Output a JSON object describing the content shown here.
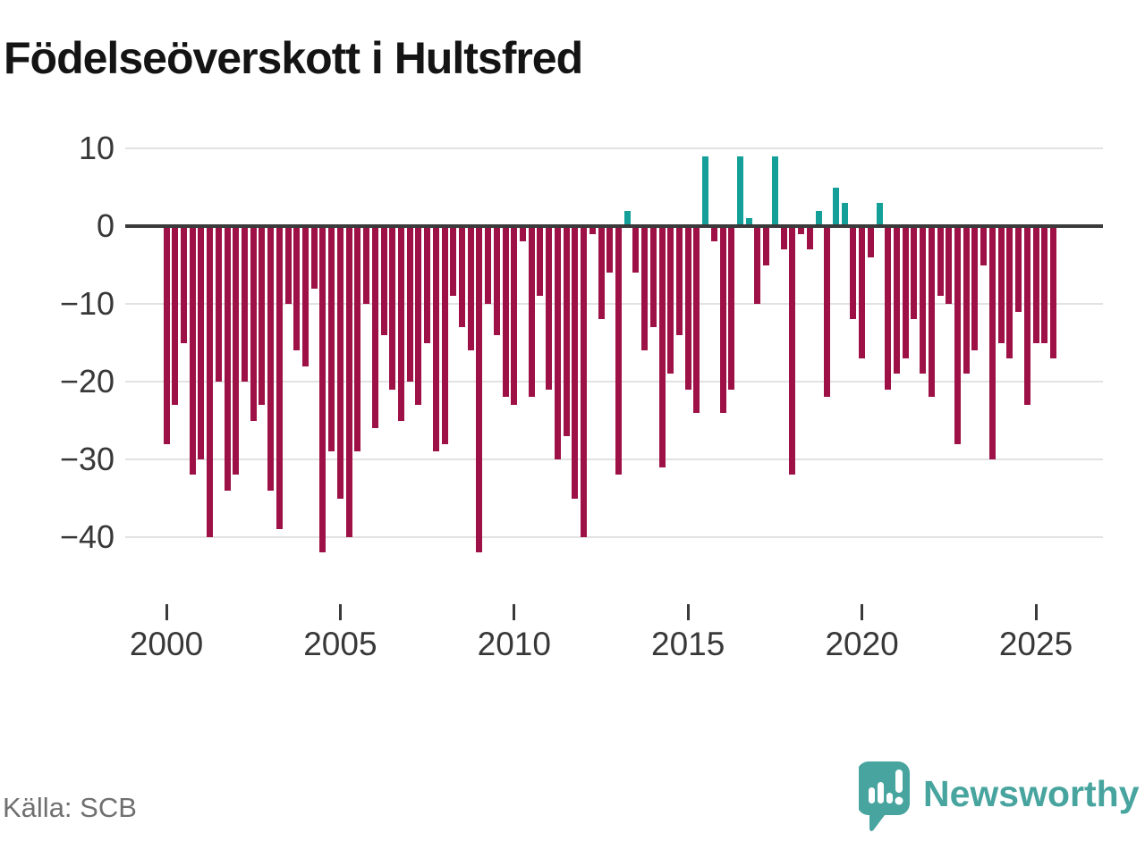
{
  "title": "Födelseöverskott i Hultsfred",
  "source": "Källa: SCB",
  "brand": {
    "name": "Newsworthy",
    "color": "#48a49e"
  },
  "chart_data": {
    "type": "bar",
    "title": "Födelseöverskott i Hultsfred",
    "frequency": "quarterly",
    "x_start": "2000 Q1",
    "x_end": "2025 Q3",
    "grid": "horizontal",
    "legend": "none",
    "ylim": [
      -44,
      11
    ],
    "ytick_values": [
      10,
      0,
      -10,
      -20,
      -30,
      -40
    ],
    "ytick_labels": [
      "10",
      "0",
      "−10",
      "−20",
      "−30",
      "−40"
    ],
    "xtick_years": [
      2000,
      2005,
      2010,
      2015,
      2020,
      2025
    ],
    "xtick_labels": [
      "2000",
      "2005",
      "2010",
      "2015",
      "2020",
      "2025"
    ],
    "colors": {
      "negative": "#9e1146",
      "positive": "#14a099",
      "zero_line": "#3a3a3a",
      "grid": "#e2e2e2"
    },
    "categories": [
      "2000 Q1",
      "2000 Q2",
      "2000 Q3",
      "2000 Q4",
      "2001 Q1",
      "2001 Q2",
      "2001 Q3",
      "2001 Q4",
      "2002 Q1",
      "2002 Q2",
      "2002 Q3",
      "2002 Q4",
      "2003 Q1",
      "2003 Q2",
      "2003 Q3",
      "2003 Q4",
      "2004 Q1",
      "2004 Q2",
      "2004 Q3",
      "2004 Q4",
      "2005 Q1",
      "2005 Q2",
      "2005 Q3",
      "2005 Q4",
      "2006 Q1",
      "2006 Q2",
      "2006 Q3",
      "2006 Q4",
      "2007 Q1",
      "2007 Q2",
      "2007 Q3",
      "2007 Q4",
      "2008 Q1",
      "2008 Q2",
      "2008 Q3",
      "2008 Q4",
      "2009 Q1",
      "2009 Q2",
      "2009 Q3",
      "2009 Q4",
      "2010 Q1",
      "2010 Q2",
      "2010 Q3",
      "2010 Q4",
      "2011 Q1",
      "2011 Q2",
      "2011 Q3",
      "2011 Q4",
      "2012 Q1",
      "2012 Q2",
      "2012 Q3",
      "2012 Q4",
      "2013 Q1",
      "2013 Q2",
      "2013 Q3",
      "2013 Q4",
      "2014 Q1",
      "2014 Q2",
      "2014 Q3",
      "2014 Q4",
      "2015 Q1",
      "2015 Q2",
      "2015 Q3",
      "2015 Q4",
      "2016 Q1",
      "2016 Q2",
      "2016 Q3",
      "2016 Q4",
      "2017 Q1",
      "2017 Q2",
      "2017 Q3",
      "2017 Q4",
      "2018 Q1",
      "2018 Q2",
      "2018 Q3",
      "2018 Q4",
      "2019 Q1",
      "2019 Q2",
      "2019 Q3",
      "2019 Q4",
      "2020 Q1",
      "2020 Q2",
      "2020 Q3",
      "2020 Q4",
      "2021 Q1",
      "2021 Q2",
      "2021 Q3",
      "2021 Q4",
      "2022 Q1",
      "2022 Q2",
      "2022 Q3",
      "2022 Q4",
      "2023 Q1",
      "2023 Q2",
      "2023 Q3",
      "2023 Q4",
      "2024 Q1",
      "2024 Q2",
      "2024 Q3",
      "2024 Q4",
      "2025 Q1",
      "2025 Q2",
      "2025 Q3"
    ],
    "values": [
      -28,
      -23,
      -15,
      -32,
      -30,
      -40,
      -20,
      -34,
      -32,
      -20,
      -25,
      -23,
      -34,
      -39,
      -10,
      -16,
      -18,
      -8,
      -42,
      -29,
      -35,
      -40,
      -29,
      -10,
      -26,
      -14,
      -21,
      -25,
      -20,
      -23,
      -15,
      -29,
      -28,
      -9,
      -13,
      -16,
      -42,
      -10,
      -14,
      -22,
      -23,
      -2,
      -22,
      -9,
      -21,
      -30,
      -27,
      -35,
      -40,
      -1,
      -12,
      -6,
      -32,
      2,
      -6,
      -16,
      -13,
      -31,
      -19,
      -14,
      -21,
      -24,
      9,
      -2,
      -24,
      -21,
      9,
      1,
      -10,
      -5,
      9,
      -3,
      -32,
      -1,
      -3,
      2,
      -22,
      5,
      3,
      -12,
      -17,
      -4,
      3,
      -21,
      -19,
      -17,
      -12,
      -19,
      -22,
      -9,
      -10,
      -28,
      -19,
      -16,
      -5,
      -30,
      -15,
      -17,
      -11,
      -23,
      -15,
      -15,
      -17
    ]
  }
}
